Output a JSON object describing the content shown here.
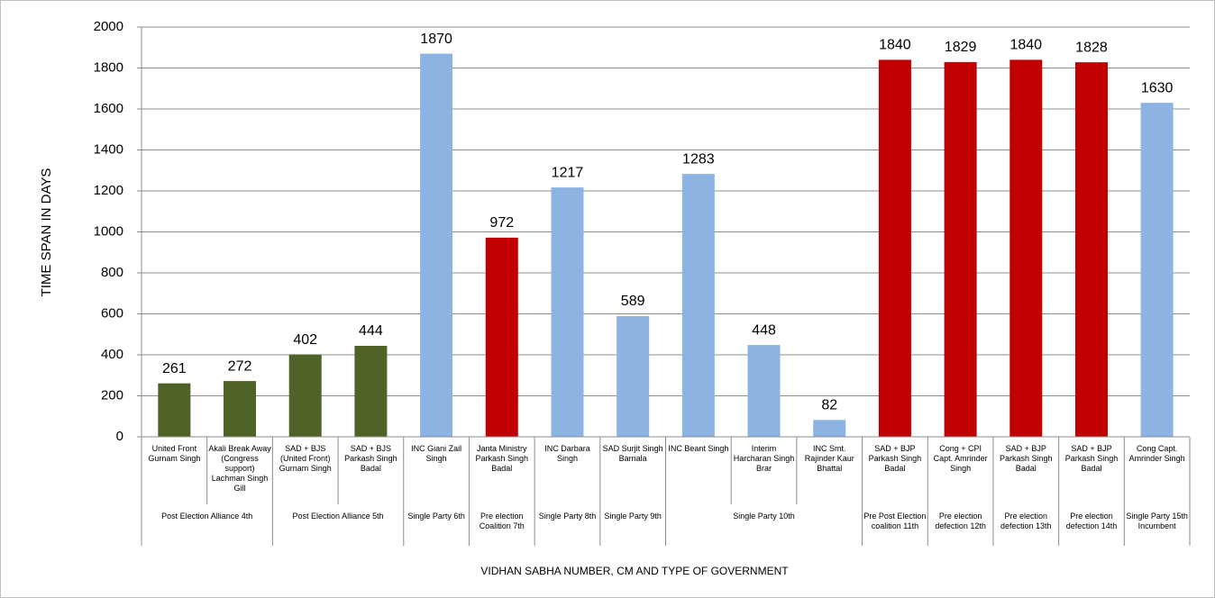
{
  "chart_data": {
    "type": "bar",
    "ylabel": "TIME SPAN IN DAYS",
    "xlabel": "VIDHAN SABHA NUMBER,  CM AND TYPE OF GOVERNMENT",
    "groups": [
      {
        "label": "Post Election Alliance 4th",
        "categories": [
          "United Front Gurnam Singh",
          "Akali Break Away (Congress support) Lachman Singh Gill"
        ]
      },
      {
        "label": "Post Election Alliance 5th",
        "categories": [
          "SAD + BJS (United Front) Gurnam Singh",
          "SAD + BJS Parkash Singh Badal"
        ]
      },
      {
        "label": "Single Party 6th",
        "categories": [
          "INC Giani Zail Singh"
        ]
      },
      {
        "label": "Pre election Coalition 7th",
        "categories": [
          "Janta Ministry Parkash Singh Badal"
        ]
      },
      {
        "label": "Single Party 8th",
        "categories": [
          "INC Darbara Singh"
        ]
      },
      {
        "label": "Single Party 9th",
        "categories": [
          "SAD Surjit Singh Barnala"
        ]
      },
      {
        "label": "Single Party 10th",
        "categories": [
          "INC Beant Singh",
          "Interim Harcharan Singh Brar",
          "INC Smt. Rajinder Kaur Bhattal"
        ]
      },
      {
        "label": "Pre Post Election coalition 11th",
        "categories": [
          "SAD + BJP Parkash Singh Badal"
        ]
      },
      {
        "label": "Pre election defection 12th",
        "categories": [
          "Cong + CPI Capt. Amrinder Singh"
        ]
      },
      {
        "label": "Pre election defection 13th",
        "categories": [
          "SAD + BJP Parkash Singh Badal"
        ]
      },
      {
        "label": "Pre election defection 14th",
        "categories": [
          "SAD + BJP Parkash Singh Badal"
        ]
      },
      {
        "label": "Single Party 15th Incumbent",
        "categories": [
          "Cong Capt. Amrinder Singh"
        ]
      }
    ],
    "values": [
      261,
      272,
      402,
      444,
      1870,
      972,
      1217,
      589,
      1283,
      448,
      82,
      1840,
      1829,
      1840,
      1828,
      1630
    ],
    "colors": [
      "#4f6228",
      "#4f6228",
      "#4f6228",
      "#4f6228",
      "#8db3e2",
      "#c00000",
      "#8db3e2",
      "#8db3e2",
      "#8db3e2",
      "#8db3e2",
      "#8db3e2",
      "#c00000",
      "#c00000",
      "#c00000",
      "#c00000",
      "#8db3e2"
    ],
    "ylim": [
      0,
      2000
    ],
    "yticks": [
      0,
      200,
      400,
      600,
      800,
      1000,
      1200,
      1400,
      1600,
      1800,
      2000
    ],
    "grid": true
  }
}
